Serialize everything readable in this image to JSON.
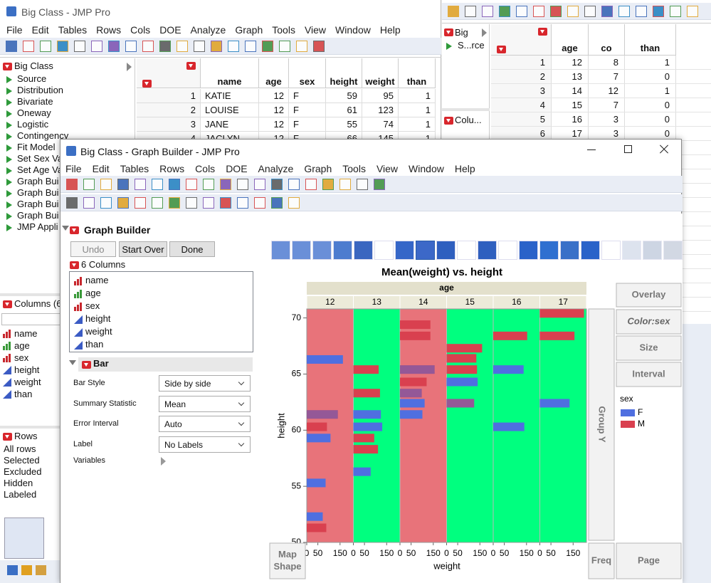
{
  "back_window": {
    "title": "Big Class - JMP Pro",
    "menu": [
      "File",
      "Edit",
      "Tables",
      "Rows",
      "Cols",
      "DOE",
      "Analyze",
      "Graph",
      "Tools",
      "View",
      "Window",
      "Help"
    ],
    "table_name": "Big Class",
    "scripts": [
      "Source",
      "Distribution",
      "Bivariate",
      "Oneway",
      "Logistic",
      "Contingency",
      "Fit Model",
      "Set Sex Va",
      "Set Age Va",
      "Graph Bui",
      "Graph Bui",
      "Graph Bui",
      "Graph Bui",
      "JMP Appli"
    ],
    "columns_title": "Columns (6",
    "columns": [
      "name",
      "age",
      "sex",
      "height",
      "weight",
      "than"
    ],
    "modeling_types": [
      "nominal",
      "ordinal",
      "nominal",
      "continuous",
      "continuous",
      "continuous"
    ],
    "rows_title": "Rows",
    "row_states": [
      "All rows",
      "Selected",
      "Excluded",
      "Hidden",
      "Labeled"
    ],
    "table": {
      "header": [
        "name",
        "age",
        "sex",
        "height",
        "weight",
        "than"
      ],
      "rows": [
        [
          1,
          "KATIE",
          12,
          "F",
          59,
          95,
          1
        ],
        [
          2,
          "LOUISE",
          12,
          "F",
          61,
          123,
          1
        ],
        [
          3,
          "JANE",
          12,
          "F",
          55,
          74,
          1
        ],
        [
          4,
          "JACLYN",
          12,
          "F",
          66,
          145,
          1
        ]
      ]
    }
  },
  "side_window": {
    "tables": [
      "Big",
      "S...rce"
    ],
    "columns_title": "Colu...",
    "table": {
      "header": [
        "age",
        "co",
        "than"
      ],
      "rows": [
        [
          1,
          12,
          8,
          1
        ],
        [
          2,
          13,
          7,
          0
        ],
        [
          3,
          14,
          12,
          1
        ],
        [
          4,
          15,
          7,
          0
        ],
        [
          5,
          16,
          3,
          0
        ],
        [
          6,
          17,
          3,
          0
        ]
      ]
    }
  },
  "graph_window": {
    "title": "Big Class - Graph Builder - JMP Pro",
    "panel_title": "Graph Builder",
    "buttons": [
      "Undo",
      "Start Over",
      "Done"
    ],
    "columns_title": "6 Columns",
    "element_title": "Bar",
    "options": [
      [
        "Bar Style",
        "Side by side"
      ],
      [
        "Summary Statistic",
        "Mean"
      ],
      [
        "Error Interval",
        "Auto"
      ],
      [
        "Label",
        "No Labels"
      ]
    ],
    "variables": "Variables",
    "zones": {
      "overlay": "Overlay",
      "color": "Color:sex",
      "size": "Size",
      "interval": "Interval",
      "group_y": "Group Y",
      "map_shape": "Map Shape",
      "freq": "Freq",
      "page": "Page"
    }
  },
  "chart_data": {
    "type": "bar",
    "title": "Mean(weight) vs. height",
    "panel_label": "age",
    "categories": [
      12,
      13,
      14,
      15,
      16,
      17
    ],
    "panel_colors": [
      "#e8737a",
      "#00ff7f",
      "#e8737a",
      "#00ff7f",
      "#00ff7f",
      "#00ff7f"
    ],
    "x_label": "weight",
    "y_label": "height",
    "xlim": [
      0,
      210
    ],
    "xticks": [
      0,
      50,
      150
    ],
    "ylim": [
      50,
      70.8
    ],
    "yticks": [
      50,
      55,
      60,
      65,
      70
    ],
    "legend_title": "sex",
    "series": [
      {
        "name": "M",
        "color": "#d9404f",
        "age": [
          12,
          12,
          12,
          13,
          13,
          13,
          13,
          14,
          14,
          14,
          14,
          14,
          15,
          15,
          15,
          15,
          16,
          17,
          17
        ],
        "height": [
          61.4,
          60.3,
          51.3,
          65.4,
          63.3,
          59.3,
          58.3,
          69.4,
          68.4,
          65.4,
          64.3,
          63.3,
          67.3,
          66.4,
          65.4,
          62.4,
          68.4,
          70.4,
          68.4
        ],
        "weight": [
          140,
          91,
          88,
          114,
          120,
          94,
          111,
          137,
          137,
          156,
          120,
          98,
          160,
          134,
          137,
          124,
          153,
          199,
          156
        ]
      },
      {
        "name": "F",
        "color": "#4f6fe0",
        "age": [
          12,
          12,
          12,
          12,
          12,
          13,
          13,
          13,
          14,
          14,
          14,
          14,
          15,
          15,
          16,
          16,
          17
        ],
        "height": [
          66.3,
          61.4,
          59.3,
          55.3,
          52.3,
          61.4,
          60.3,
          56.3,
          65.4,
          63.3,
          62.4,
          61.4,
          64.3,
          62.4,
          65.4,
          60.3,
          62.4
        ],
        "weight": [
          163,
          140,
          107,
          85,
          72,
          124,
          130,
          78,
          156,
          98,
          111,
          101,
          140,
          124,
          137,
          140,
          134
        ]
      }
    ],
    "legend_order": [
      1,
      0
    ]
  }
}
